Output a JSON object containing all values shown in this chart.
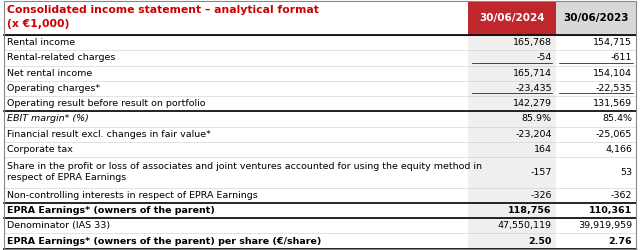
{
  "title_line1": "Consolidated income statement – analytical format",
  "title_line2": "(x €1,000)",
  "col1_header": "30/06/2024",
  "col2_header": "30/06/2023",
  "rows": [
    {
      "label": "Rental income",
      "v1": "165,768",
      "v2": "154,715",
      "underline1": false,
      "underline2": false,
      "bold": false,
      "italic": false,
      "shaded": false,
      "top_border": true,
      "bottom_border": false,
      "tall": false
    },
    {
      "label": "Rental-related charges",
      "v1": "-54",
      "v2": "-611",
      "underline1": true,
      "underline2": true,
      "bold": false,
      "italic": false,
      "shaded": false,
      "top_border": false,
      "bottom_border": false,
      "tall": false
    },
    {
      "label": "Net rental income",
      "v1": "165,714",
      "v2": "154,104",
      "underline1": false,
      "underline2": false,
      "bold": false,
      "italic": false,
      "shaded": false,
      "top_border": false,
      "bottom_border": false,
      "tall": false
    },
    {
      "label": "Operating charges*",
      "v1": "-23,435",
      "v2": "-22,535",
      "underline1": true,
      "underline2": true,
      "bold": false,
      "italic": false,
      "shaded": false,
      "top_border": false,
      "bottom_border": false,
      "tall": false
    },
    {
      "label": "Operating result before result on portfolio",
      "v1": "142,279",
      "v2": "131,569",
      "underline1": false,
      "underline2": false,
      "bold": false,
      "italic": false,
      "shaded": false,
      "top_border": false,
      "bottom_border": true,
      "tall": false
    },
    {
      "label": "EBIT margin* (%)",
      "v1": "85.9%",
      "v2": "85.4%",
      "underline1": false,
      "underline2": false,
      "bold": false,
      "italic": true,
      "shaded": false,
      "top_border": false,
      "bottom_border": false,
      "tall": false
    },
    {
      "label": "Financial result excl. changes in fair value*",
      "v1": "-23,204",
      "v2": "-25,065",
      "underline1": false,
      "underline2": false,
      "bold": false,
      "italic": false,
      "shaded": false,
      "top_border": false,
      "bottom_border": false,
      "tall": false
    },
    {
      "label": "Corporate tax",
      "v1": "164",
      "v2": "4,166",
      "underline1": false,
      "underline2": false,
      "bold": false,
      "italic": false,
      "shaded": false,
      "top_border": false,
      "bottom_border": false,
      "tall": false
    },
    {
      "label": "Share in the profit or loss of associates and joint ventures accounted for using the equity method in\nrespect of EPRA Earnings",
      "v1": "-157",
      "v2": "53",
      "underline1": false,
      "underline2": false,
      "bold": false,
      "italic": false,
      "shaded": false,
      "top_border": false,
      "bottom_border": false,
      "tall": true
    },
    {
      "label": "Non-controlling interests in respect of EPRA Earnings",
      "v1": "-326",
      "v2": "-362",
      "underline1": false,
      "underline2": false,
      "bold": false,
      "italic": false,
      "shaded": false,
      "top_border": false,
      "bottom_border": false,
      "tall": false
    },
    {
      "label": "EPRA Earnings* (owners of the parent)",
      "v1": "118,756",
      "v2": "110,361",
      "underline1": false,
      "underline2": false,
      "bold": true,
      "italic": false,
      "shaded": false,
      "top_border": true,
      "bottom_border": true,
      "tall": false
    },
    {
      "label": "Denominator (IAS 33)",
      "v1": "47,550,119",
      "v2": "39,919,959",
      "underline1": false,
      "underline2": false,
      "bold": false,
      "italic": false,
      "shaded": false,
      "top_border": false,
      "bottom_border": false,
      "tall": false
    },
    {
      "label": "EPRA Earnings* (owners of the parent) per share (€/share)",
      "v1": "2.50",
      "v2": "2.76",
      "underline1": false,
      "underline2": false,
      "bold": true,
      "italic": false,
      "shaded": false,
      "top_border": false,
      "bottom_border": true,
      "tall": false
    }
  ],
  "title_color": "#CC0000",
  "header_bg1": "#C0272D",
  "header_bg2": "#D8D8D8",
  "header_text1": "#FFFFFF",
  "header_text2": "#000000",
  "shaded_bg": "#E8E8E8",
  "col1_bg": "#EFEFEF",
  "body_bg": "#FFFFFF",
  "border_color": "#888888",
  "strong_border": "#000000",
  "font_size": 6.8,
  "header_font_size": 7.5,
  "title_font_size": 7.8
}
